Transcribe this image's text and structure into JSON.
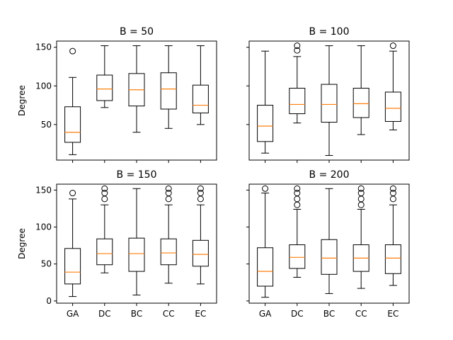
{
  "chart_data": [
    {
      "type": "box",
      "title": "B = 50",
      "xlabel": "",
      "ylabel": "Degree",
      "categories": [
        "GA",
        "DC",
        "BC",
        "CC",
        "EC"
      ],
      "ylim": [
        4,
        158
      ],
      "yticks": [
        50,
        100,
        150
      ],
      "show_xticklabels": false,
      "show_yticklabels": true,
      "boxes": [
        {
          "category": "GA",
          "whislo": 11,
          "q1": 27,
          "median": 40,
          "q3": 73,
          "whishi": 111,
          "fliers": [
            145
          ]
        },
        {
          "category": "DC",
          "whislo": 72,
          "q1": 81,
          "median": 96,
          "q3": 114,
          "whishi": 152,
          "fliers": []
        },
        {
          "category": "BC",
          "whislo": 40,
          "q1": 74,
          "median": 95,
          "q3": 116,
          "whishi": 152,
          "fliers": []
        },
        {
          "category": "CC",
          "whislo": 45,
          "q1": 70,
          "median": 96,
          "q3": 117,
          "whishi": 152,
          "fliers": []
        },
        {
          "category": "EC",
          "whislo": 50,
          "q1": 65,
          "median": 75,
          "q3": 101,
          "whishi": 152,
          "fliers": []
        }
      ]
    },
    {
      "type": "box",
      "title": "B = 100",
      "xlabel": "",
      "ylabel": "",
      "categories": [
        "GA",
        "DC",
        "BC",
        "CC",
        "EC"
      ],
      "ylim": [
        4,
        158
      ],
      "yticks": [
        50,
        100,
        150
      ],
      "show_xticklabels": false,
      "show_yticklabels": false,
      "boxes": [
        {
          "category": "GA",
          "whislo": 13,
          "q1": 28,
          "median": 48,
          "q3": 75,
          "whishi": 145,
          "fliers": []
        },
        {
          "category": "DC",
          "whislo": 52,
          "q1": 64,
          "median": 76,
          "q3": 97,
          "whishi": 138,
          "fliers": [
            146,
            152
          ]
        },
        {
          "category": "BC",
          "whislo": 10,
          "q1": 53,
          "median": 76,
          "q3": 102,
          "whishi": 152,
          "fliers": []
        },
        {
          "category": "CC",
          "whislo": 37,
          "q1": 59,
          "median": 77,
          "q3": 97,
          "whishi": 152,
          "fliers": []
        },
        {
          "category": "EC",
          "whislo": 43,
          "q1": 54,
          "median": 71,
          "q3": 92,
          "whishi": 145,
          "fliers": [
            152
          ]
        }
      ]
    },
    {
      "type": "box",
      "title": "B = 150",
      "xlabel": "",
      "ylabel": "Degree",
      "categories": [
        "GA",
        "DC",
        "BC",
        "CC",
        "EC"
      ],
      "ylim": [
        -3,
        158
      ],
      "yticks": [
        0,
        50,
        100,
        150
      ],
      "show_xticklabels": true,
      "show_yticklabels": true,
      "boxes": [
        {
          "category": "GA",
          "whislo": 6,
          "q1": 23,
          "median": 39,
          "q3": 71,
          "whishi": 138,
          "fliers": [
            146
          ]
        },
        {
          "category": "DC",
          "whislo": 38,
          "q1": 49,
          "median": 64,
          "q3": 84,
          "whishi": 130,
          "fliers": [
            138,
            146,
            152
          ]
        },
        {
          "category": "BC",
          "whislo": 8,
          "q1": 40,
          "median": 64,
          "q3": 85,
          "whishi": 152,
          "fliers": []
        },
        {
          "category": "CC",
          "whislo": 24,
          "q1": 49,
          "median": 65,
          "q3": 84,
          "whishi": 130,
          "fliers": [
            138,
            146,
            152
          ]
        },
        {
          "category": "EC",
          "whislo": 23,
          "q1": 47,
          "median": 63,
          "q3": 82,
          "whishi": 130,
          "fliers": [
            138,
            146,
            152
          ]
        }
      ]
    },
    {
      "type": "box",
      "title": "B = 200",
      "xlabel": "",
      "ylabel": "",
      "categories": [
        "GA",
        "DC",
        "BC",
        "CC",
        "EC"
      ],
      "ylim": [
        -3,
        158
      ],
      "yticks": [
        0,
        50,
        100,
        150
      ],
      "show_xticklabels": true,
      "show_yticklabels": false,
      "boxes": [
        {
          "category": "GA",
          "whislo": 5,
          "q1": 20,
          "median": 40,
          "q3": 72,
          "whishi": 146,
          "fliers": [
            152
          ]
        },
        {
          "category": "DC",
          "whislo": 32,
          "q1": 44,
          "median": 59,
          "q3": 76,
          "whishi": 124,
          "fliers": [
            130,
            138,
            146,
            152
          ]
        },
        {
          "category": "BC",
          "whislo": 10,
          "q1": 36,
          "median": 58,
          "q3": 83,
          "whishi": 152,
          "fliers": []
        },
        {
          "category": "CC",
          "whislo": 17,
          "q1": 40,
          "median": 58,
          "q3": 76,
          "whishi": 124,
          "fliers": [
            130,
            138,
            146,
            152
          ]
        },
        {
          "category": "EC",
          "whislo": 21,
          "q1": 37,
          "median": 58,
          "q3": 76,
          "whishi": 130,
          "fliers": [
            138,
            146,
            152
          ]
        }
      ]
    }
  ]
}
